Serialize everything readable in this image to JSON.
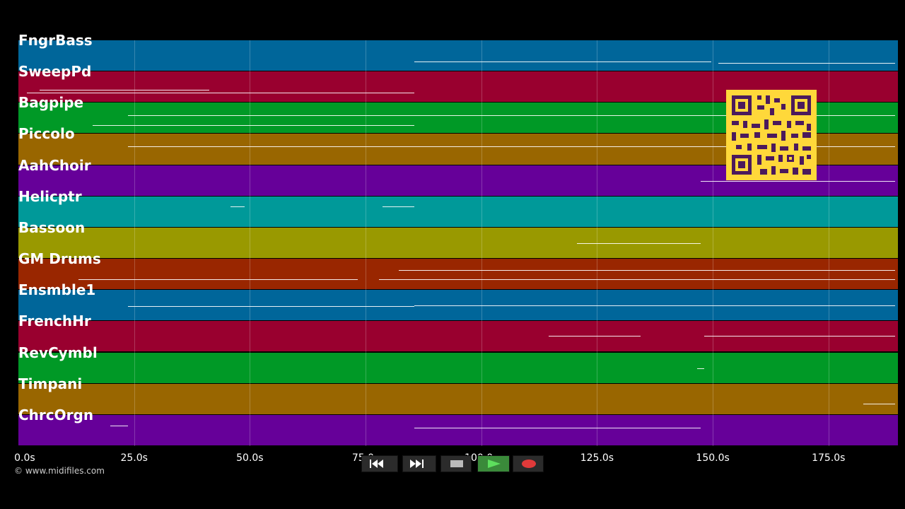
{
  "lanes": [
    {
      "label": "FngrBass",
      "color": "#00669a"
    },
    {
      "label": "SweepPd",
      "color": "#99002f"
    },
    {
      "label": "Bagpipe",
      "color": "#009926"
    },
    {
      "label": "Piccolo",
      "color": "#996600"
    },
    {
      "label": "AahChoir",
      "color": "#660099"
    },
    {
      "label": "Helicptr",
      "color": "#009999"
    },
    {
      "label": "Bassoon",
      "color": "#999900"
    },
    {
      "label": "GM Drums",
      "color": "#992600"
    },
    {
      "label": "Ensmble1",
      "color": "#00669a"
    },
    {
      "label": "FrenchHr",
      "color": "#99002f"
    },
    {
      "label": "RevCymbl",
      "color": "#009926"
    },
    {
      "label": "Timpani",
      "color": "#996600"
    },
    {
      "label": "ChrcOrgn",
      "color": "#660099"
    }
  ],
  "timeline": {
    "max_seconds": 190,
    "ticks": [
      "0.0s",
      "25.0s",
      "50.0s",
      "75.0s",
      "100.0s",
      "125.0s",
      "150.0s",
      "175.0s"
    ],
    "tick_values": [
      0,
      25,
      50,
      75,
      100,
      125,
      150,
      175
    ]
  },
  "copyright": "© www.midifiles.com",
  "controls": [
    {
      "name": "rewind-button",
      "icon": "rewind-icon"
    },
    {
      "name": "fast-forward-button",
      "icon": "fast-forward-icon"
    },
    {
      "name": "stop-button",
      "icon": "stop-icon"
    },
    {
      "name": "play-button",
      "icon": "play-icon",
      "color": "#2e8b2e"
    },
    {
      "name": "record-button",
      "icon": "record-icon",
      "color": "#e03a3a"
    }
  ],
  "qr_color": "#ffd83a"
}
